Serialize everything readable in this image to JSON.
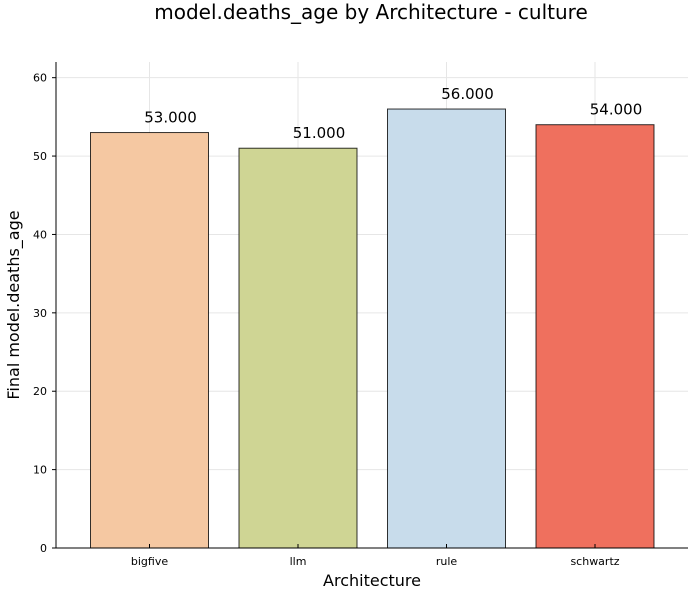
{
  "chart_data": {
    "type": "bar",
    "title": "model.deaths_age by Architecture - culture",
    "xlabel": "Architecture",
    "ylabel": "Final model.deaths_age",
    "categories": [
      "bigfive",
      "llm",
      "rule",
      "schwartz"
    ],
    "values": [
      53,
      51,
      56,
      54
    ],
    "data_labels": [
      "53.000",
      "51.000",
      "56.000",
      "54.000"
    ],
    "colors": [
      "#f5c8a2",
      "#cfd594",
      "#c8dceb",
      "#ef705e"
    ],
    "ylim": [
      0,
      62
    ],
    "yticks": [
      0,
      10,
      20,
      30,
      40,
      50,
      60
    ],
    "grid": true,
    "legend": "none"
  }
}
